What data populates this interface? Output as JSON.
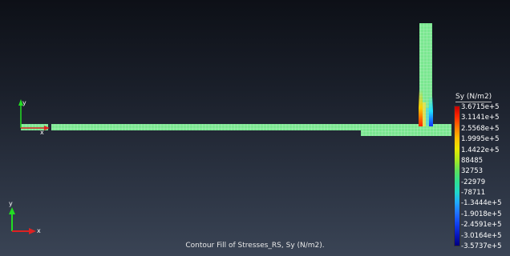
{
  "viewport": {
    "background_top": "#0d1017",
    "background_bottom": "#3a4455"
  },
  "model": {
    "mesh_base_color": "#7ae890",
    "mesh_line_color": "#cfeed6",
    "hotspot_colors": [
      "#ff2000",
      "#ffd000",
      "#20e0ff",
      "#1030ff"
    ]
  },
  "triad_small": {
    "y_label": "y",
    "x_label": "x"
  },
  "triad_main": {
    "y_label": "y",
    "x_label": "x"
  },
  "legend": {
    "title": "Sy (N/m2)",
    "labels": [
      "3.6715e+5",
      "3.1141e+5",
      "2.5568e+5",
      "1.9995e+5",
      "1.4422e+5",
      "88485",
      "32753",
      "-22979",
      "-78711",
      "-1.3444e+5",
      "-1.9018e+5",
      "-2.4591e+5",
      "-3.0164e+5",
      "-3.5737e+5"
    ],
    "colors": [
      "#c80000",
      "#ff2a00",
      "#ff7a00",
      "#ffc000",
      "#e8e800",
      "#a8e820",
      "#5ce05c",
      "#30e090",
      "#20d8c8",
      "#20a8ff",
      "#2070ff",
      "#1040f0",
      "#0818c0",
      "#000080"
    ]
  },
  "caption": "Contour Fill of Stresses_RS, Sy (N/m2)."
}
